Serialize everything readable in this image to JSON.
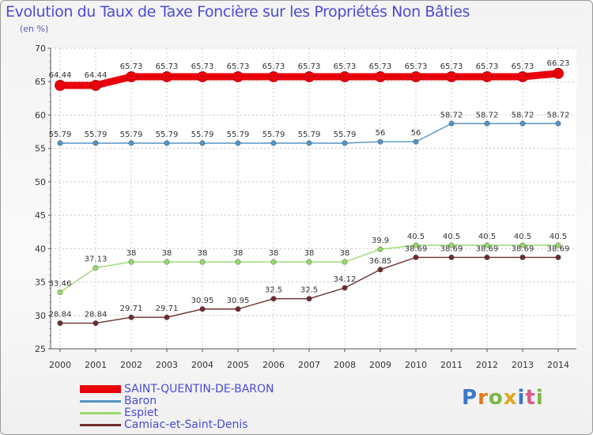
{
  "title": "Evolution du Taux de Taxe Foncière sur les Propriétés Non Bâties",
  "unit_label": "(en %)",
  "logo_text": "Proxiti",
  "chart_data": {
    "type": "line",
    "title": "Evolution du Taux de Taxe Foncière sur les Propriétés Non Bâties",
    "ylabel": "(en %)",
    "xlabel": "",
    "ylim": [
      25,
      70
    ],
    "yticks": [
      "25",
      "30",
      "35",
      "40",
      "45",
      "50",
      "55",
      "60",
      "65",
      "70"
    ],
    "categories": [
      "2000",
      "2001",
      "2002",
      "2003",
      "2004",
      "2005",
      "2006",
      "2007",
      "2008",
      "2009",
      "2010",
      "2011",
      "2012",
      "2013",
      "2014"
    ],
    "series": [
      {
        "name": "SAINT-QUENTIN-DE-BARON",
        "color": "#e8000b",
        "values": [
          64.44,
          64.44,
          65.73,
          65.73,
          65.73,
          65.73,
          65.73,
          65.73,
          65.73,
          65.73,
          65.73,
          65.73,
          65.73,
          65.73,
          66.23
        ],
        "labels": [
          "64.44",
          "64.44",
          "65.73",
          "65.73",
          "65.73",
          "65.73",
          "65.73",
          "65.73",
          "65.73",
          "65.73",
          "65.73",
          "65.73",
          "65.73",
          "65.73",
          "66.23"
        ]
      },
      {
        "name": "Baron",
        "color": "#5594c6",
        "values": [
          55.79,
          55.79,
          55.79,
          55.79,
          55.79,
          55.79,
          55.79,
          55.79,
          55.79,
          56,
          56,
          58.72,
          58.72,
          58.72,
          58.72
        ],
        "labels": [
          "55.79",
          "55.79",
          "55.79",
          "55.79",
          "55.79",
          "55.79",
          "55.79",
          "55.79",
          "55.79",
          "56",
          "56",
          "58.72",
          "58.72",
          "58.72",
          "58.72"
        ]
      },
      {
        "name": "Espiet",
        "color": "#99d96b",
        "values": [
          33.46,
          37.13,
          38,
          38,
          38,
          38,
          38,
          38,
          38,
          39.9,
          40.5,
          40.5,
          40.5,
          40.5,
          40.5
        ],
        "labels": [
          "33.46",
          "37.13",
          "38",
          "38",
          "38",
          "38",
          "38",
          "38",
          "38",
          "39.9",
          "40.5",
          "40.5",
          "40.5",
          "40.5",
          "40.5"
        ]
      },
      {
        "name": "Camiac-et-Saint-Denis",
        "color": "#6e2e2e",
        "values": [
          28.84,
          28.84,
          29.71,
          29.71,
          30.95,
          30.95,
          32.5,
          32.5,
          34.12,
          36.85,
          38.69,
          38.69,
          38.69,
          38.69,
          38.69
        ],
        "labels": [
          "28.84",
          "28.84",
          "29.71",
          "29.71",
          "30.95",
          "30.95",
          "32.5",
          "32.5",
          "34.12",
          "36.85",
          "38.69",
          "38.69",
          "38.69",
          "38.69",
          "38.69"
        ]
      }
    ]
  }
}
